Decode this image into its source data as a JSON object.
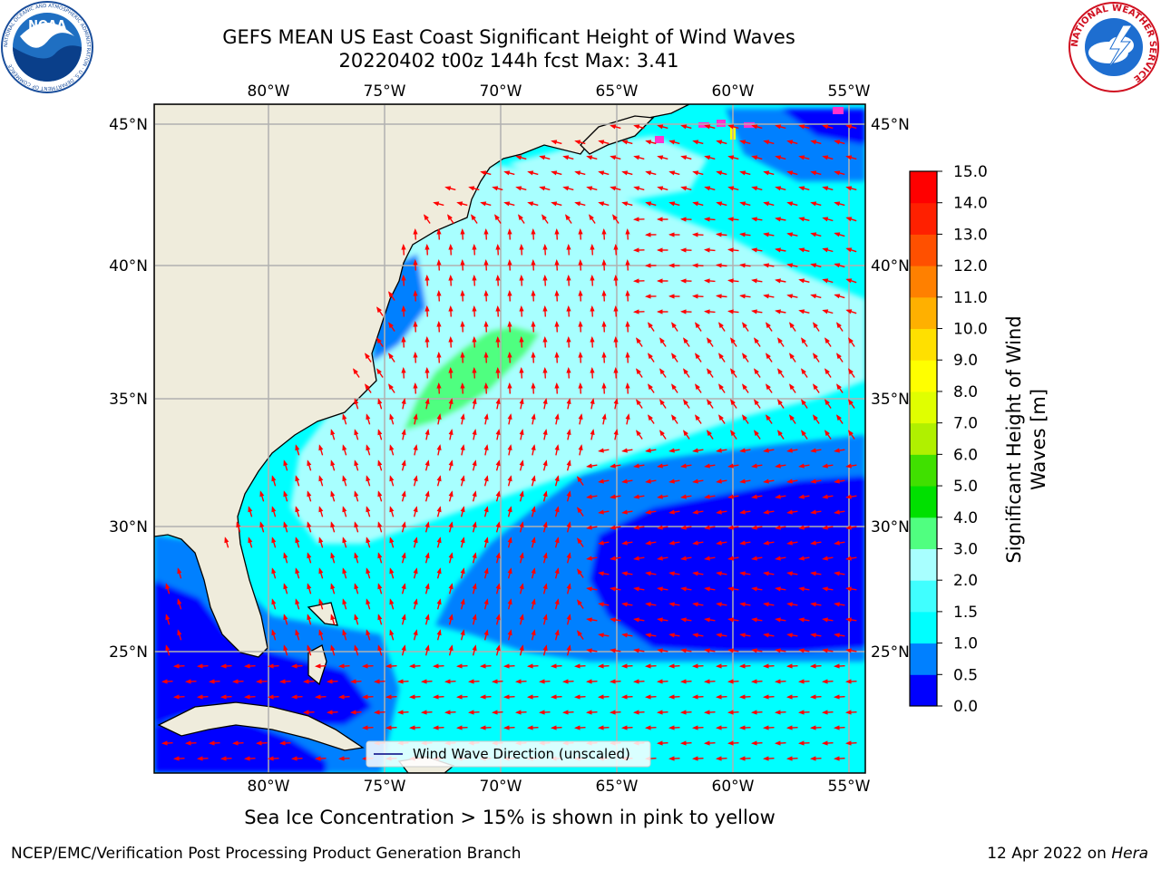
{
  "header": {
    "title_line1": "GEFS MEAN US East Coast Significant Height of Wind Waves",
    "title_line2": "20220402 t00z 144h fcst   Max: 3.41"
  },
  "logos": {
    "noara_text": "NOAA",
    "noaa_ring_text": "NATIONAL OCEANIC AND ATMOSPHERIC ADMINISTRATION · U.S. DEPARTMENT OF COMMERCE",
    "nws_ring_text": "NATIONAL WEATHER SERVICE"
  },
  "map": {
    "lon_ticks": [
      "80°W",
      "75°W",
      "70°W",
      "65°W",
      "60°W",
      "55°W"
    ],
    "lat_ticks_left": [
      "45°N",
      "40°N",
      "35°N",
      "30°N",
      "25°N"
    ],
    "lat_ticks_right": [
      "45°N",
      "40°N",
      "35°N",
      "30°N",
      "25°N"
    ],
    "legend_label": "Wind Wave Direction (unscaled)",
    "colors": {
      "land": "#efecdc",
      "arrow": "#ff0000",
      "grid": "#b0b0b0",
      "ice": "#ff33cc"
    }
  },
  "colorbar": {
    "label": "Significant Height of Wind Waves [m]",
    "label_line1": "Significant Height of Wind",
    "label_line2": "Waves [m]",
    "ticks": [
      "0.0",
      "0.5",
      "1.0",
      "1.5",
      "2.0",
      "3.0",
      "4.0",
      "5.0",
      "6.0",
      "7.0",
      "8.0",
      "9.0",
      "10.0",
      "11.0",
      "12.0",
      "13.0",
      "14.0",
      "15.0"
    ],
    "colors": [
      "#0000ff",
      "#0080ff",
      "#00ffff",
      "#40ffff",
      "#a8ffff",
      "#50ff80",
      "#00e000",
      "#40e000",
      "#b0f000",
      "#e0ff00",
      "#ffff00",
      "#ffe000",
      "#ffb000",
      "#ff8000",
      "#ff5000",
      "#ff2000",
      "#ff0000"
    ]
  },
  "bottom_note": "Sea Ice Concentration > 15% is shown in pink to yellow",
  "footer": {
    "left": "NCEP/EMC/Verification Post Processing Product Generation Branch",
    "right_date": "12 Apr 2022 on",
    "right_machine": "Hera"
  }
}
